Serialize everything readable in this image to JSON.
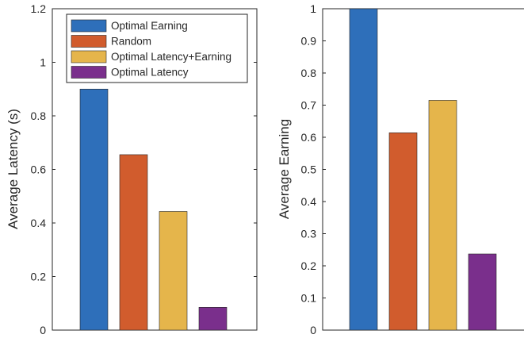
{
  "chart_data": [
    {
      "type": "bar",
      "categories": [
        "Optimal Earning",
        "Random",
        "Optimal Latency+Earning",
        "Optimal Latency"
      ],
      "values": [
        0.9,
        0.655,
        0.443,
        0.085
      ],
      "colors": [
        "#2e6fba",
        "#d15c2d",
        "#e5b54b",
        "#7a2f8c"
      ],
      "title": "",
      "xlabel": "",
      "ylabel": "Average Latency (s)",
      "ylim": [
        0,
        1.2
      ],
      "yticks": [
        "0",
        "0.2",
        "0.4",
        "0.6",
        "0.8",
        "1",
        "1.2"
      ],
      "legend": {
        "placement": "top-right",
        "entries": [
          "Optimal Earning",
          "Random",
          "Optimal Latency+Earning",
          "Optimal Latency"
        ]
      },
      "grid": false
    },
    {
      "type": "bar",
      "categories": [
        "Optimal Earning",
        "Random",
        "Optimal Latency+Earning",
        "Optimal Latency"
      ],
      "values": [
        1.0,
        0.614,
        0.715,
        0.237
      ],
      "colors": [
        "#2e6fba",
        "#d15c2d",
        "#e5b54b",
        "#7a2f8c"
      ],
      "title": "",
      "xlabel": "",
      "ylabel": "Average Earning",
      "ylim": [
        0,
        1
      ],
      "yticks": [
        "0",
        "0.1",
        "0.2",
        "0.3",
        "0.4",
        "0.5",
        "0.6",
        "0.7",
        "0.8",
        "0.9",
        "1"
      ],
      "grid": false
    }
  ]
}
